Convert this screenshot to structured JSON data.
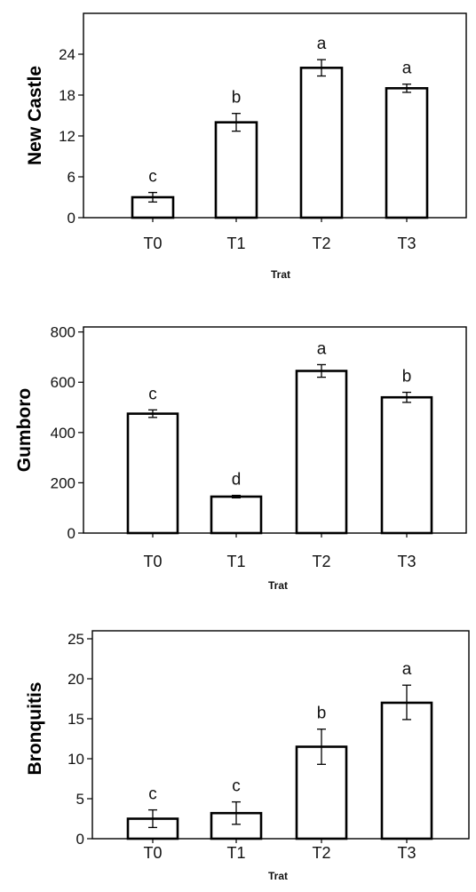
{
  "chart_data": [
    {
      "type": "bar",
      "ylabel": "New Castle",
      "xlabel": "Trat",
      "categories": [
        "T0",
        "T1",
        "T2",
        "T3"
      ],
      "values": [
        3,
        14,
        22,
        19
      ],
      "error_low": [
        2.3,
        12.7,
        20.8,
        18.4
      ],
      "error_high": [
        3.7,
        15.3,
        23.2,
        19.6
      ],
      "letters": [
        "c",
        "b",
        "a",
        "a"
      ],
      "yticks": [
        0,
        6,
        12,
        18,
        24
      ],
      "ylim": [
        0,
        30
      ],
      "grid": false
    },
    {
      "type": "bar",
      "ylabel": "Gumboro",
      "xlabel": "Trat",
      "categories": [
        "T0",
        "T1",
        "T2",
        "T3"
      ],
      "values": [
        475,
        145,
        645,
        540
      ],
      "error_low": [
        460,
        140,
        620,
        520
      ],
      "error_high": [
        490,
        150,
        670,
        560
      ],
      "letters": [
        "c",
        "d",
        "a",
        "b"
      ],
      "yticks": [
        0,
        200,
        400,
        600,
        800
      ],
      "ylim": [
        0,
        820
      ],
      "grid": false
    },
    {
      "type": "bar",
      "ylabel": "Bronquitis",
      "xlabel": "Trat",
      "categories": [
        "T0",
        "T1",
        "T2",
        "T3"
      ],
      "values": [
        2.5,
        3.2,
        11.5,
        17.0
      ],
      "error_low": [
        1.4,
        1.8,
        9.3,
        14.9
      ],
      "error_high": [
        3.6,
        4.6,
        13.7,
        19.2
      ],
      "letters": [
        "c",
        "c",
        "b",
        "a"
      ],
      "yticks": [
        0,
        5,
        10,
        15,
        20,
        25
      ],
      "ylim": [
        0,
        26
      ],
      "grid": false
    }
  ]
}
